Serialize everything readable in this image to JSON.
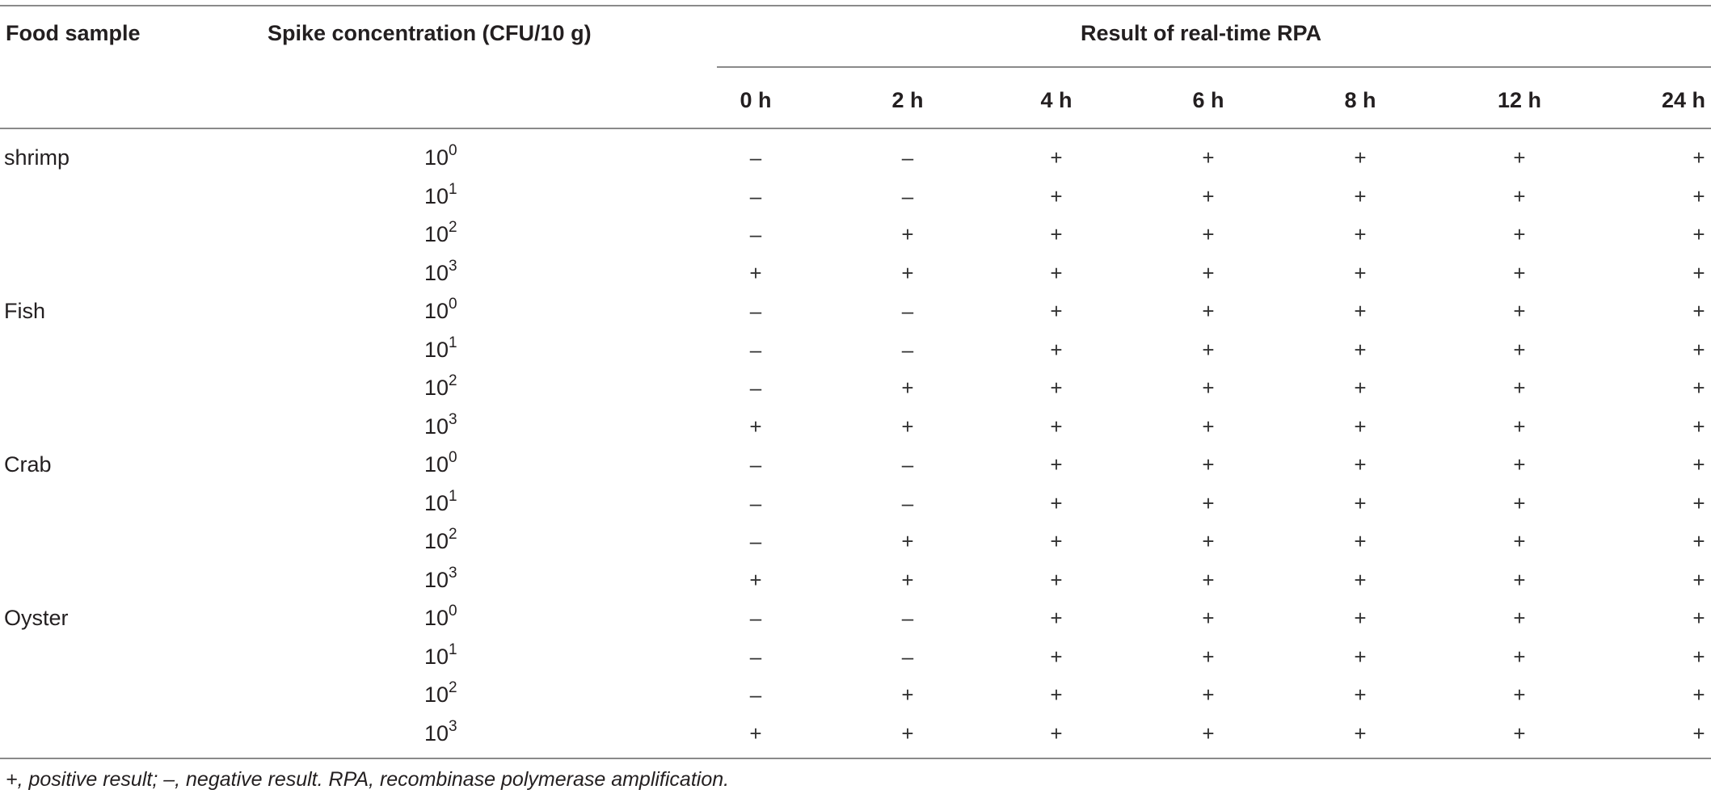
{
  "table": {
    "headers": {
      "food_sample": "Food sample",
      "spike_concentration": "Spike concentration (CFU/10 g)",
      "result_group": "Result of real-time RPA",
      "times": [
        "0 h",
        "2 h",
        "4 h",
        "6 h",
        "8 h",
        "12 h",
        "24 h"
      ]
    },
    "rows": [
      {
        "food": "shrimp",
        "base": "10",
        "exp": "0",
        "results": [
          "–",
          "–",
          "+",
          "+",
          "+",
          "+",
          "+"
        ]
      },
      {
        "food": "",
        "base": "10",
        "exp": "1",
        "results": [
          "–",
          "–",
          "+",
          "+",
          "+",
          "+",
          "+"
        ]
      },
      {
        "food": "",
        "base": "10",
        "exp": "2",
        "results": [
          "–",
          "+",
          "+",
          "+",
          "+",
          "+",
          "+"
        ]
      },
      {
        "food": "",
        "base": "10",
        "exp": "3",
        "results": [
          "+",
          "+",
          "+",
          "+",
          "+",
          "+",
          "+"
        ]
      },
      {
        "food": "Fish",
        "base": "10",
        "exp": "0",
        "results": [
          "–",
          "–",
          "+",
          "+",
          "+",
          "+",
          "+"
        ]
      },
      {
        "food": "",
        "base": "10",
        "exp": "1",
        "results": [
          "–",
          "–",
          "+",
          "+",
          "+",
          "+",
          "+"
        ]
      },
      {
        "food": "",
        "base": "10",
        "exp": "2",
        "results": [
          "–",
          "+",
          "+",
          "+",
          "+",
          "+",
          "+"
        ]
      },
      {
        "food": "",
        "base": "10",
        "exp": "3",
        "results": [
          "+",
          "+",
          "+",
          "+",
          "+",
          "+",
          "+"
        ]
      },
      {
        "food": "Crab",
        "base": "10",
        "exp": "0",
        "results": [
          "–",
          "–",
          "+",
          "+",
          "+",
          "+",
          "+"
        ]
      },
      {
        "food": "",
        "base": "10",
        "exp": "1",
        "results": [
          "–",
          "–",
          "+",
          "+",
          "+",
          "+",
          "+"
        ]
      },
      {
        "food": "",
        "base": "10",
        "exp": "2",
        "results": [
          "–",
          "+",
          "+",
          "+",
          "+",
          "+",
          "+"
        ]
      },
      {
        "food": "",
        "base": "10",
        "exp": "3",
        "results": [
          "+",
          "+",
          "+",
          "+",
          "+",
          "+",
          "+"
        ]
      },
      {
        "food": "Oyster",
        "base": "10",
        "exp": "0",
        "results": [
          "–",
          "–",
          "+",
          "+",
          "+",
          "+",
          "+"
        ]
      },
      {
        "food": "",
        "base": "10",
        "exp": "1",
        "results": [
          "–",
          "–",
          "+",
          "+",
          "+",
          "+",
          "+"
        ]
      },
      {
        "food": "",
        "base": "10",
        "exp": "2",
        "results": [
          "–",
          "+",
          "+",
          "+",
          "+",
          "+",
          "+"
        ]
      },
      {
        "food": "",
        "base": "10",
        "exp": "3",
        "results": [
          "+",
          "+",
          "+",
          "+",
          "+",
          "+",
          "+"
        ]
      }
    ],
    "footnote": "+, positive result; –, negative result. RPA, recombinase polymerase amplification."
  }
}
